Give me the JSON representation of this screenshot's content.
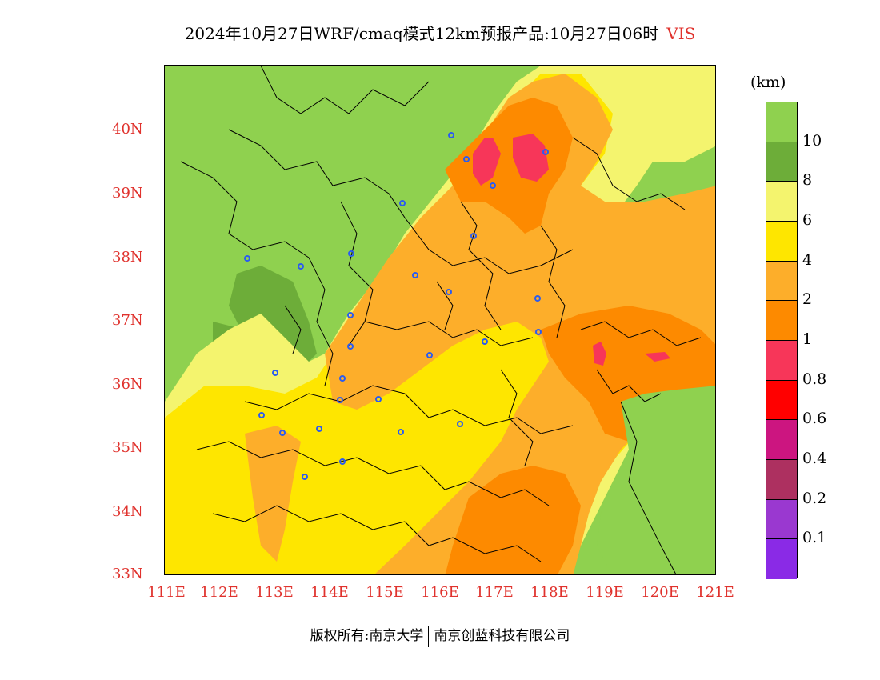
{
  "title": {
    "main": "2024年10月27日WRF/cmaq模式12km预报产品:10月27日06时",
    "variable": "VIS"
  },
  "map": {
    "lat_labels": [
      "40N",
      "39N",
      "38N",
      "37N",
      "36N",
      "35N",
      "34N",
      "33N"
    ],
    "lon_labels": [
      "111E",
      "112E",
      "113E",
      "114E",
      "115E",
      "116E",
      "117E",
      "118E",
      "119E",
      "120E",
      "121E"
    ],
    "colors": {
      "over_10": "#8fd14f",
      "8_10": "#6dad39",
      "6_8": "#f4f46e",
      "4_6": "#fee600",
      "2_4": "#fdae2a",
      "1_2": "#fd8a00",
      "0.8_1": "#f73659",
      "station_marker": "#2b5cf0",
      "border": "#000000"
    }
  },
  "legend": {
    "unit": "(km)",
    "labels": [
      "10",
      "8",
      "6",
      "4",
      "2",
      "1",
      "0.8",
      "0.6",
      "0.4",
      "0.2",
      "0.1"
    ],
    "colors": [
      "#8fd14f",
      "#6dad39",
      "#f4f46e",
      "#fee600",
      "#fdae2a",
      "#fd8a00",
      "#f73659",
      "#ff0000",
      "#cc1580",
      "#ad3060",
      "#9a38d0",
      "#8a2ae6"
    ]
  },
  "footer": {
    "copyright": "版权所有:南京大学",
    "company": "南京创蓝科技有限公司"
  }
}
